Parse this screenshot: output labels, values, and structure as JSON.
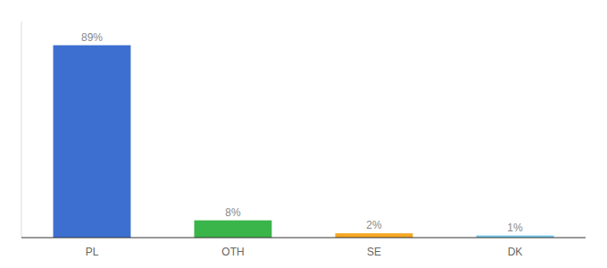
{
  "chart_data": {
    "type": "bar",
    "categories": [
      "PL",
      "OTH",
      "SE",
      "DK"
    ],
    "values": [
      89,
      8,
      2,
      1
    ],
    "value_labels": [
      "89%",
      "8%",
      "2%",
      "1%"
    ],
    "colors": [
      "#3d6fd1",
      "#3ab54a",
      "#f5a623",
      "#76c8e8"
    ],
    "ylim": [
      0,
      100
    ],
    "data_labels": true,
    "tick_labels": "x",
    "grid": false
  }
}
